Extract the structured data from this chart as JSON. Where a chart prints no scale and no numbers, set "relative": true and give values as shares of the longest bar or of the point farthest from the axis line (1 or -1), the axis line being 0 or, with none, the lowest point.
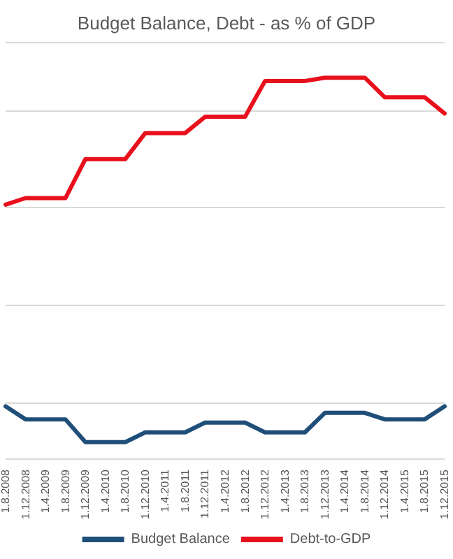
{
  "chart_data": {
    "type": "line",
    "title": "Budget Balance, Debt - as % of GDP",
    "relative": true,
    "grid": "y",
    "legend": "bottom",
    "marker": "none",
    "line_style": "solid",
    "categories": [
      "1.8.2008",
      "1.12.2008",
      "1.4.2009",
      "1.8.2009",
      "1.12.2009",
      "1.4.2010",
      "1.8.2010",
      "1.12.2010",
      "1.4.2011",
      "1.8.2011",
      "1.12.2011",
      "1.4.2012",
      "1.8.2012",
      "1.12.2012",
      "1.4.2013",
      "1.8.2013",
      "1.12.2013",
      "1.4.2014",
      "1.8.2014",
      "1.12.2014",
      "1.4.2015",
      "1.8.2015",
      "1.12.2015"
    ],
    "series": [
      {
        "name": "Budget Balance",
        "color": "#1f4e79",
        "values": [
          -0.01,
          -0.05,
          -0.05,
          -0.05,
          -0.12,
          -0.12,
          -0.12,
          -0.09,
          -0.09,
          -0.09,
          -0.06,
          -0.06,
          -0.06,
          -0.09,
          -0.09,
          -0.09,
          -0.03,
          -0.03,
          -0.03,
          -0.05,
          -0.05,
          -0.05,
          -0.01
        ]
      },
      {
        "name": "Debt-to-GDP",
        "color": "#e8101c",
        "values": [
          0.61,
          0.63,
          0.63,
          0.63,
          0.75,
          0.75,
          0.75,
          0.83,
          0.83,
          0.83,
          0.88,
          0.88,
          0.88,
          0.99,
          0.99,
          0.99,
          1,
          1,
          1,
          0.94,
          0.94,
          0.94,
          0.89
        ]
      }
    ]
  }
}
